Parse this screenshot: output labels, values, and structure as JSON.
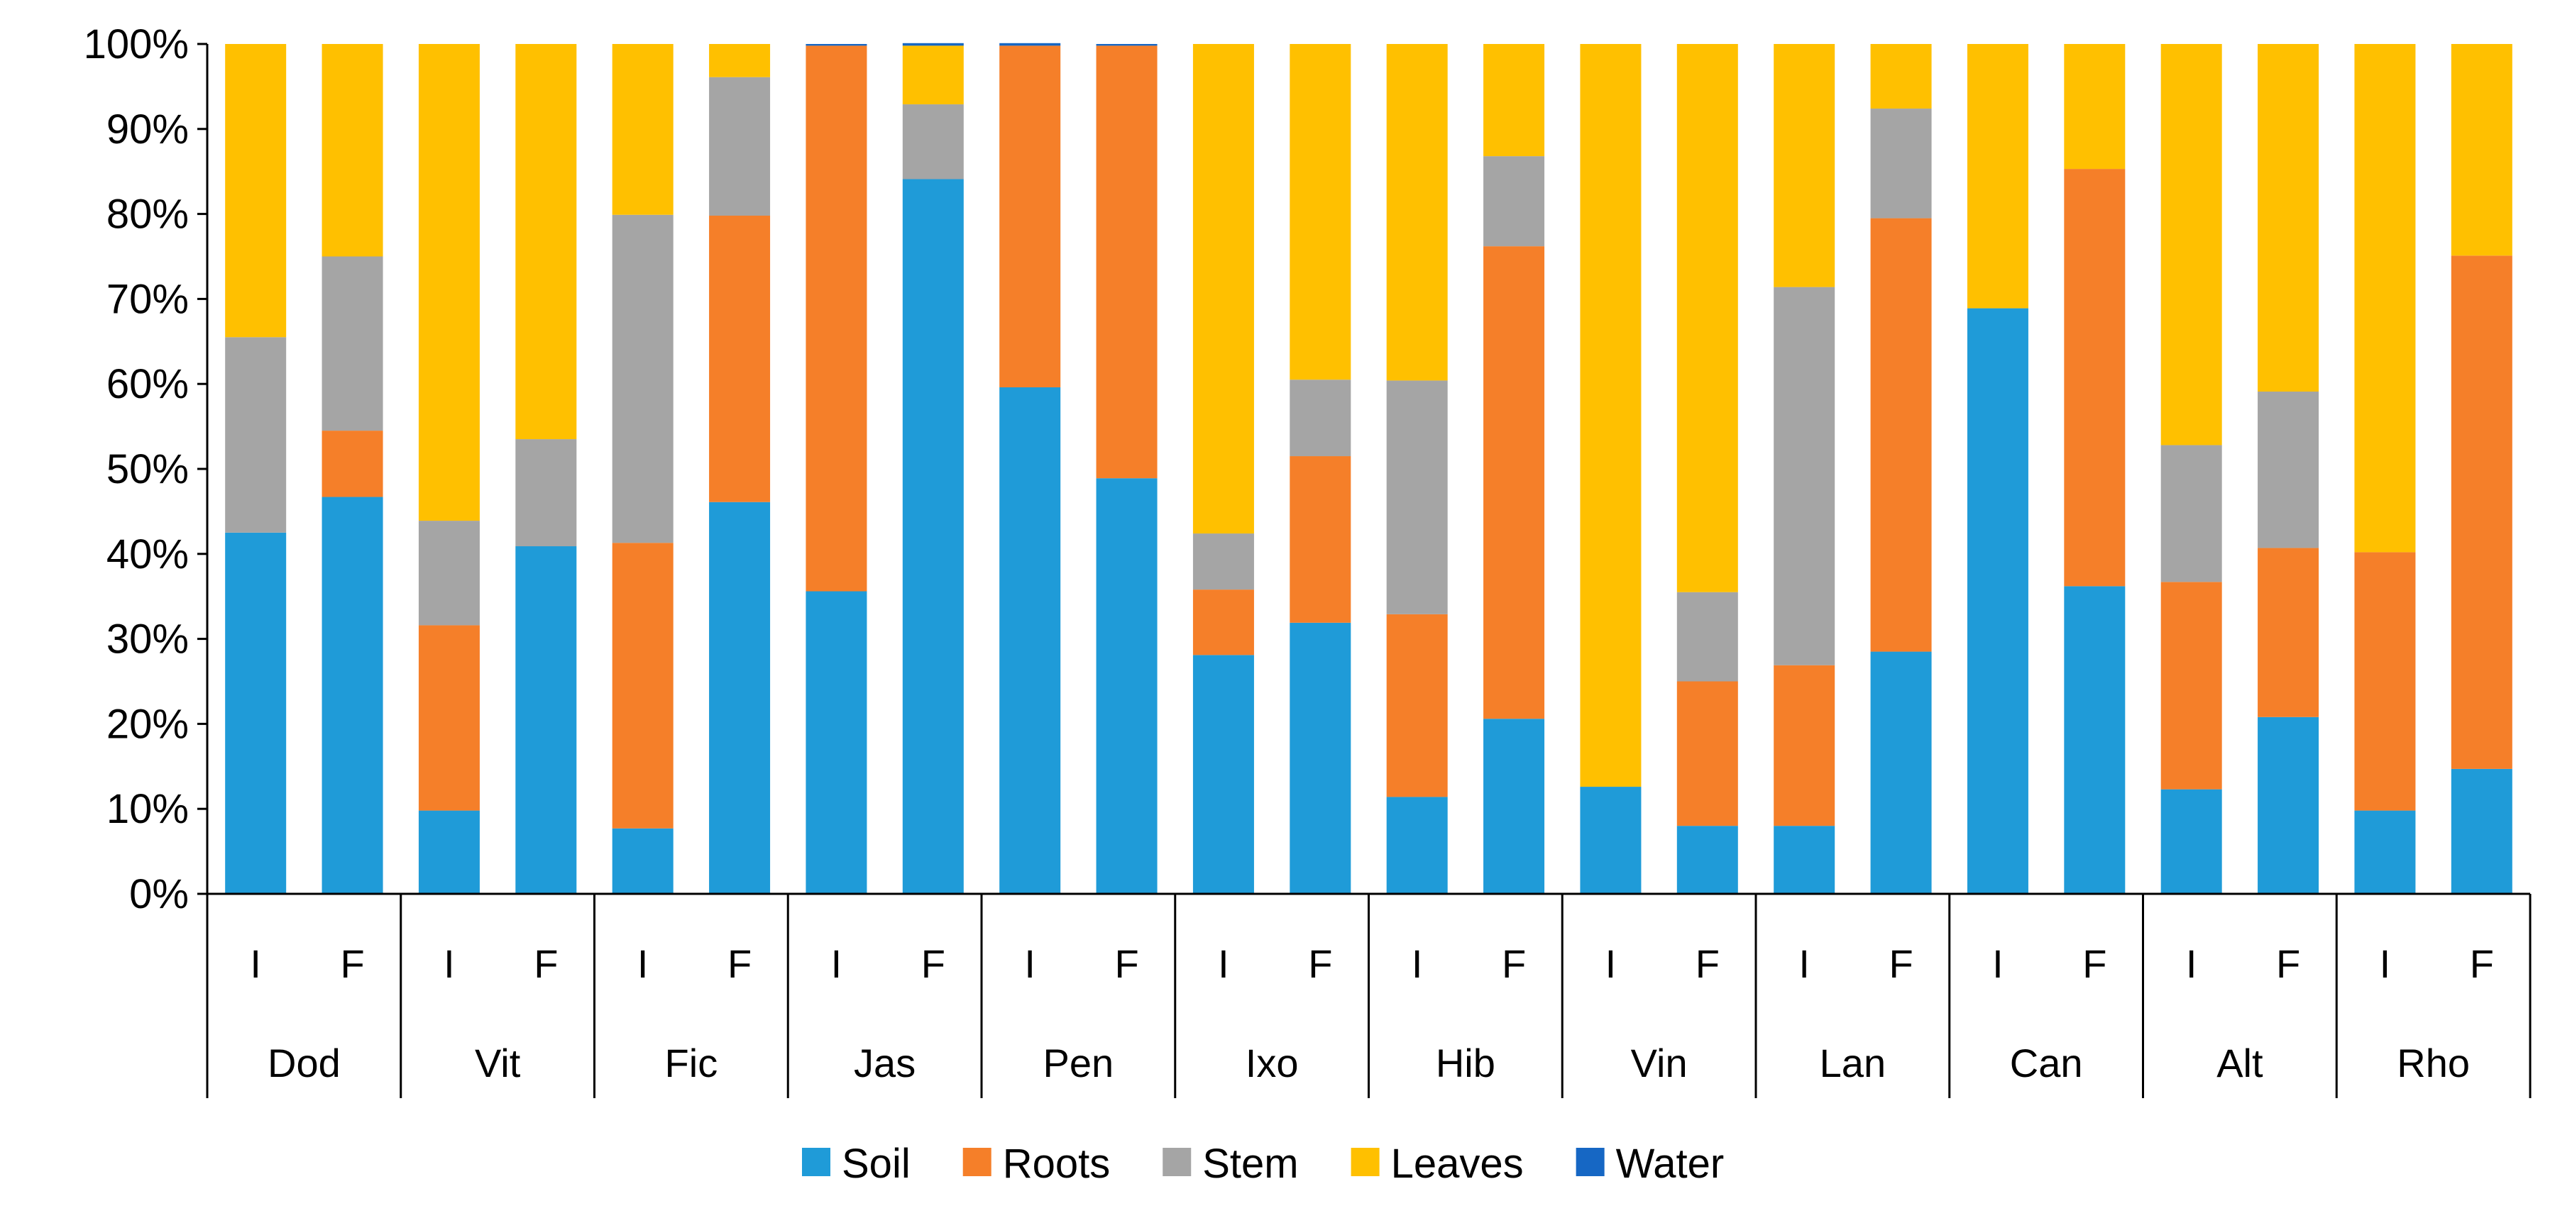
{
  "chart_data": {
    "type": "bar",
    "stacked": "percent",
    "title": "",
    "xlabel": "",
    "ylabel": "",
    "ylim": [
      0,
      100
    ],
    "y_ticks": [
      "0%",
      "10%",
      "20%",
      "30%",
      "40%",
      "50%",
      "60%",
      "70%",
      "80%",
      "90%",
      "100%"
    ],
    "groups": [
      "Dod",
      "Vit",
      "Fic",
      "Jas",
      "Pen",
      "Ixo",
      "Hib",
      "Vin",
      "Lan",
      "Can",
      "Alt",
      "Rho"
    ],
    "subcategories": [
      "I",
      "F"
    ],
    "categories": [
      "Dod I",
      "Dod F",
      "Vit I",
      "Vit F",
      "Fic I",
      "Fic F",
      "Jas I",
      "Jas F",
      "Pen I",
      "Pen F",
      "Ixo I",
      "Ixo F",
      "Hib I",
      "Hib F",
      "Vin I",
      "Vin F",
      "Lan I",
      "Lan F",
      "Can I",
      "Can F",
      "Alt I",
      "Alt F",
      "Rho I",
      "Rho F"
    ],
    "series": [
      {
        "name": "Soil",
        "color": "#1f9bd8",
        "values": [
          42.5,
          46.7,
          9.8,
          40.9,
          7.7,
          46.1,
          35.6,
          84.1,
          59.6,
          48.9,
          28.1,
          31.9,
          11.4,
          20.6,
          12.6,
          8.0,
          8.0,
          28.5,
          68.9,
          36.2,
          12.3,
          20.8,
          9.8,
          14.7
        ]
      },
      {
        "name": "Roots",
        "color": "#f57f29",
        "values": [
          0.0,
          7.8,
          21.8,
          0.0,
          33.6,
          33.7,
          64.2,
          0.0,
          40.2,
          50.9,
          7.7,
          19.6,
          21.5,
          55.6,
          0.0,
          17.0,
          18.9,
          51.0,
          0.0,
          49.1,
          24.4,
          19.9,
          30.4,
          60.4
        ]
      },
      {
        "name": "Stem",
        "color": "#a5a5a5",
        "values": [
          23.0,
          20.5,
          12.3,
          12.6,
          38.6,
          16.3,
          0.0,
          8.8,
          0.0,
          0.0,
          6.6,
          9.0,
          27.5,
          10.6,
          0.0,
          10.5,
          44.5,
          12.9,
          0.0,
          0.0,
          16.1,
          18.4,
          0.0,
          0.0
        ]
      },
      {
        "name": "Leaves",
        "color": "#ffc000",
        "values": [
          34.5,
          25.0,
          56.1,
          46.5,
          20.1,
          3.9,
          0.0,
          6.9,
          0.0,
          0.0,
          57.6,
          39.5,
          39.6,
          13.2,
          87.4,
          64.5,
          28.6,
          7.6,
          31.1,
          14.7,
          47.2,
          40.9,
          59.8,
          24.9
        ]
      },
      {
        "name": "Water",
        "color": "#1667c4",
        "values": [
          0.0,
          0.0,
          0.0,
          0.0,
          0.0,
          0.0,
          0.2,
          0.3,
          0.3,
          0.2,
          0.0,
          0.0,
          0.0,
          0.0,
          0.0,
          0.0,
          0.0,
          0.0,
          0.0,
          0.0,
          0.0,
          0.0,
          0.0,
          0.0
        ]
      }
    ],
    "legend": [
      "Soil",
      "Roots",
      "Stem",
      "Leaves",
      "Water"
    ],
    "legend_position": "bottom",
    "grid": false
  }
}
